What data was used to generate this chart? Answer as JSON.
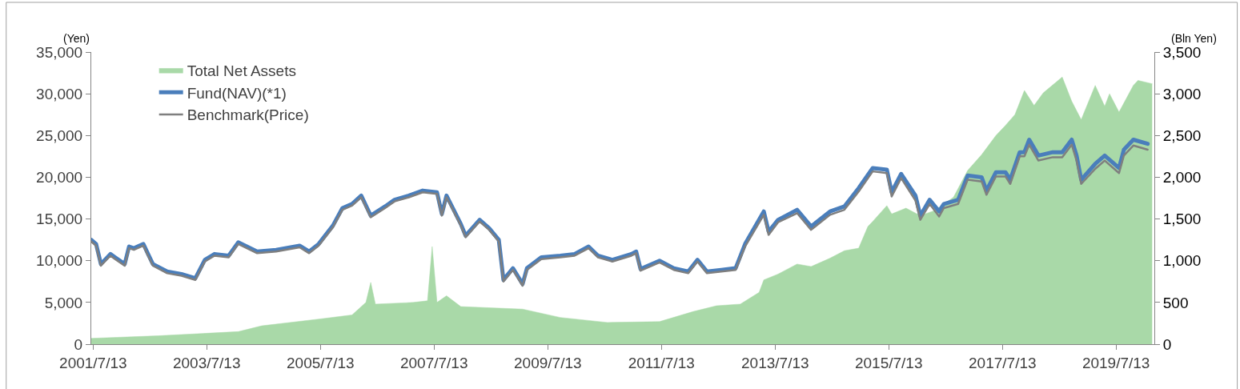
{
  "chart_data": {
    "type": "line",
    "ylabel": "(Yen)",
    "y2label": "(Bln Yen)",
    "xlim": [
      "2001-07-01",
      "2020-03-15"
    ],
    "xticks": [
      {
        "value": "2001-07-13",
        "label": "2001/7/13"
      },
      {
        "value": "2003-07-13",
        "label": "2003/7/13"
      },
      {
        "value": "2005-07-13",
        "label": "2005/7/13"
      },
      {
        "value": "2007-07-13",
        "label": "2007/7/13"
      },
      {
        "value": "2009-07-13",
        "label": "2009/7/13"
      },
      {
        "value": "2011-07-13",
        "label": "2011/7/13"
      },
      {
        "value": "2013-07-13",
        "label": "2013/7/13"
      },
      {
        "value": "2015-07-13",
        "label": "2015/7/13"
      },
      {
        "value": "2017-07-13",
        "label": "2017/7/13"
      },
      {
        "value": "2019-07-13",
        "label": "2019/7/13"
      }
    ],
    "ylim": [
      0,
      35000
    ],
    "yticks": [
      {
        "value": 0,
        "label": "0"
      },
      {
        "value": 5000,
        "label": "5,000"
      },
      {
        "value": 10000,
        "label": "10,000"
      },
      {
        "value": 15000,
        "label": "15,000"
      },
      {
        "value": 20000,
        "label": "20,000"
      },
      {
        "value": 25000,
        "label": "25,000"
      },
      {
        "value": 30000,
        "label": "30,000"
      },
      {
        "value": 35000,
        "label": "35,000"
      }
    ],
    "y2lim": [
      0,
      3500
    ],
    "y2ticks": [
      {
        "value": 0,
        "label": "0"
      },
      {
        "value": 500,
        "label": "500"
      },
      {
        "value": 1000,
        "label": "1,000"
      },
      {
        "value": 1500,
        "label": "1,500"
      },
      {
        "value": 2000,
        "label": "2,000"
      },
      {
        "value": 2500,
        "label": "2,500"
      },
      {
        "value": 3000,
        "label": "3,000"
      },
      {
        "value": 3500,
        "label": "3,500"
      }
    ],
    "legend": "top left",
    "series": [
      {
        "name": "Total Net Assets",
        "type": "area",
        "axis": "y2",
        "color": "#a9d9a8",
        "x": [
          "2001-07",
          "2002-09",
          "2004-02",
          "2004-07",
          "2005-07",
          "2006-02",
          "2006-05",
          "2006-06",
          "2006-07",
          "2007-03",
          "2007-06",
          "2007-07",
          "2007-08",
          "2007-10",
          "2008-01",
          "2009-02",
          "2009-10",
          "2010-08",
          "2011-07",
          "2012-02",
          "2012-07",
          "2012-12",
          "2013-04",
          "2013-05",
          "2013-08",
          "2013-12",
          "2014-03",
          "2014-07",
          "2014-10",
          "2015-01",
          "2015-03",
          "2015-04",
          "2015-07",
          "2015-08",
          "2015-11",
          "2016-02",
          "2016-05",
          "2016-09",
          "2016-12",
          "2017-03",
          "2017-06",
          "2017-08",
          "2017-10",
          "2017-12",
          "2018-02",
          "2018-04",
          "2018-08",
          "2018-10",
          "2018-12",
          "2019-03",
          "2019-05",
          "2019-06",
          "2019-08",
          "2019-11",
          "2019-12",
          "2020-03"
        ],
        "values": [
          70,
          100,
          150,
          220,
          300,
          350,
          500,
          740,
          480,
          500,
          520,
          1170,
          500,
          580,
          450,
          420,
          320,
          260,
          270,
          390,
          460,
          480,
          620,
          770,
          840,
          960,
          930,
          1030,
          1120,
          1150,
          1410,
          1470,
          1660,
          1560,
          1630,
          1540,
          1600,
          1760,
          2080,
          2270,
          2500,
          2620,
          2750,
          3040,
          2860,
          3010,
          3200,
          2910,
          2690,
          3100,
          2850,
          3000,
          2780,
          3100,
          3160,
          3120
        ]
      },
      {
        "name": "Fund(NAV)(*1)",
        "color": "#4a7ebb",
        "x": [
          "2001-07",
          "2001-08",
          "2001-09",
          "2001-11",
          "2001-12",
          "2002-02",
          "2002-03",
          "2002-04",
          "2002-06",
          "2002-07",
          "2002-08",
          "2002-11",
          "2003-02",
          "2003-05",
          "2003-07",
          "2003-09",
          "2003-12",
          "2004-02",
          "2004-06",
          "2004-10",
          "2005-03",
          "2005-05",
          "2005-07",
          "2005-10",
          "2005-12",
          "2006-02",
          "2006-04",
          "2006-06",
          "2006-09",
          "2006-11",
          "2007-02",
          "2007-05",
          "2007-08",
          "2007-09",
          "2007-10",
          "2008-01",
          "2008-02",
          "2008-05",
          "2008-07",
          "2008-09",
          "2008-10",
          "2008-12",
          "2009-02",
          "2009-03",
          "2009-06",
          "2009-10",
          "2010-01",
          "2010-04",
          "2010-06",
          "2010-09",
          "2011-01",
          "2011-02",
          "2011-03",
          "2011-07",
          "2011-10",
          "2012-01",
          "2012-03",
          "2012-05",
          "2012-08",
          "2012-11",
          "2013-01",
          "2013-05",
          "2013-06",
          "2013-08",
          "2013-12",
          "2014-03",
          "2014-07",
          "2014-10",
          "2015-01",
          "2015-04",
          "2015-07",
          "2015-08",
          "2015-10",
          "2016-01",
          "2016-02",
          "2016-04",
          "2016-06",
          "2016-07",
          "2016-10",
          "2016-12",
          "2017-03",
          "2017-04",
          "2017-06",
          "2017-08",
          "2017-09",
          "2017-11",
          "2017-12",
          "2018-01",
          "2018-03",
          "2018-06",
          "2018-08",
          "2018-10",
          "2018-11",
          "2018-12",
          "2019-03",
          "2019-05",
          "2019-08",
          "2019-09",
          "2019-11",
          "2020-02"
        ],
        "values": [
          12500,
          12000,
          9600,
          10800,
          10400,
          9600,
          11700,
          11500,
          12000,
          10800,
          9600,
          8700,
          8400,
          7900,
          10100,
          10800,
          10600,
          12200,
          11100,
          11300,
          11800,
          11100,
          12000,
          14200,
          16300,
          16800,
          17800,
          15400,
          16500,
          17300,
          17800,
          18400,
          18200,
          15600,
          17800,
          14400,
          13000,
          14900,
          13900,
          12500,
          7700,
          9100,
          7200,
          9100,
          10400,
          10600,
          10800,
          11700,
          10600,
          10100,
          10800,
          11100,
          9000,
          10000,
          9100,
          8700,
          10100,
          8700,
          8900,
          9100,
          12000,
          15900,
          13500,
          14900,
          16100,
          14100,
          15900,
          16500,
          18700,
          21100,
          20900,
          18200,
          20400,
          17800,
          15400,
          17300,
          15900,
          16800,
          17300,
          20200,
          20000,
          18400,
          20600,
          20600,
          19700,
          23000,
          23000,
          24500,
          22600,
          23000,
          23000,
          24500,
          22600,
          19700,
          21600,
          22600,
          21100,
          23300,
          24500,
          24000
        ]
      },
      {
        "name": "Benchmark(Price)",
        "color": "#7f7f7f",
        "x": [
          "2001-07",
          "2001-08",
          "2001-09",
          "2001-11",
          "2001-12",
          "2002-02",
          "2002-03",
          "2002-04",
          "2002-06",
          "2002-07",
          "2002-08",
          "2002-11",
          "2003-02",
          "2003-05",
          "2003-07",
          "2003-09",
          "2003-12",
          "2004-02",
          "2004-06",
          "2004-10",
          "2005-03",
          "2005-05",
          "2005-07",
          "2005-10",
          "2005-12",
          "2006-02",
          "2006-04",
          "2006-06",
          "2006-09",
          "2006-11",
          "2007-02",
          "2007-05",
          "2007-08",
          "2007-09",
          "2007-10",
          "2008-01",
          "2008-02",
          "2008-05",
          "2008-07",
          "2008-09",
          "2008-10",
          "2008-12",
          "2009-02",
          "2009-03",
          "2009-06",
          "2009-10",
          "2010-01",
          "2010-04",
          "2010-06",
          "2010-09",
          "2011-01",
          "2011-02",
          "2011-03",
          "2011-07",
          "2011-10",
          "2012-01",
          "2012-03",
          "2012-05",
          "2012-08",
          "2012-11",
          "2013-01",
          "2013-05",
          "2013-06",
          "2013-08",
          "2013-12",
          "2014-03",
          "2014-07",
          "2014-10",
          "2015-01",
          "2015-04",
          "2015-07",
          "2015-08",
          "2015-10",
          "2016-01",
          "2016-02",
          "2016-04",
          "2016-06",
          "2016-07",
          "2016-10",
          "2016-12",
          "2017-03",
          "2017-04",
          "2017-06",
          "2017-08",
          "2017-09",
          "2017-11",
          "2017-12",
          "2018-01",
          "2018-03",
          "2018-06",
          "2018-08",
          "2018-10",
          "2018-11",
          "2018-12",
          "2019-03",
          "2019-05",
          "2019-08",
          "2019-09",
          "2019-11",
          "2020-02"
        ],
        "values": [
          12300,
          11800,
          9400,
          10600,
          10200,
          9400,
          11500,
          11300,
          11800,
          10600,
          9400,
          8500,
          8200,
          7700,
          9900,
          10600,
          10400,
          12000,
          10900,
          11100,
          11600,
          10900,
          11800,
          14000,
          16100,
          16600,
          17600,
          15200,
          16300,
          17100,
          17600,
          18200,
          18000,
          15400,
          17600,
          14200,
          12800,
          14700,
          13700,
          12300,
          7500,
          8900,
          7000,
          8900,
          10200,
          10400,
          10600,
          11500,
          10400,
          9900,
          10600,
          10900,
          8800,
          9800,
          8900,
          8500,
          9900,
          8500,
          8700,
          8900,
          11700,
          15500,
          13100,
          14600,
          15700,
          13700,
          15500,
          16100,
          18300,
          20700,
          20500,
          17700,
          19900,
          17200,
          14900,
          16800,
          15300,
          16300,
          16800,
          19700,
          19500,
          17900,
          20100,
          20100,
          19200,
          22500,
          22500,
          23900,
          22000,
          22400,
          22400,
          23900,
          22000,
          19200,
          21000,
          22000,
          20500,
          22600,
          23800,
          23300
        ]
      }
    ]
  }
}
